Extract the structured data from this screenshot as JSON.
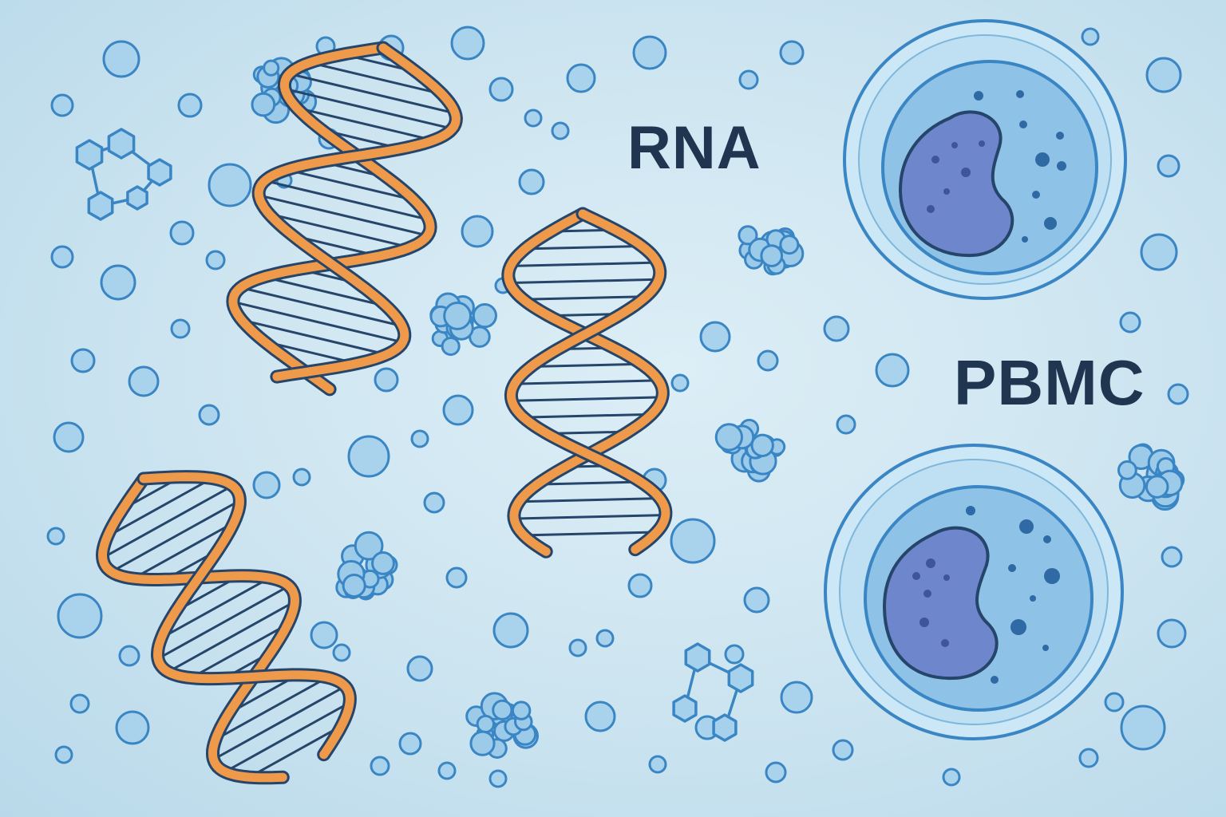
{
  "labels": {
    "rna": "RNA",
    "pbmc": "PBMC"
  },
  "colors": {
    "background": "#cfe6f1",
    "strand": "#ef9a4a",
    "outline": "#26456a",
    "bubble_fill": "#a9d3ec",
    "bubble_stroke": "#3a86c4",
    "cell_outer": "#bcdff2",
    "cell_inner": "#8ec2e6",
    "nucleus": "#6e86cc",
    "text": "#1f3550"
  },
  "illustration": {
    "double_helix_count": 3,
    "cell_count": 2,
    "molecule_cluster_count": 7,
    "hexagon_molecule_count": 2
  }
}
